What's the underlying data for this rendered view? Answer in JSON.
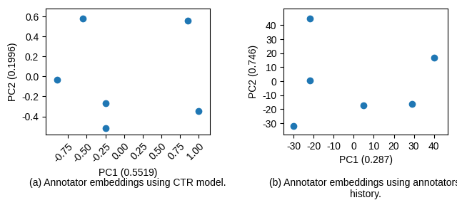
{
  "chart_data": [
    {
      "type": "scatter",
      "x": [
        -0.9,
        -0.55,
        -0.25,
        -0.25,
        0.85,
        1.0
      ],
      "values": [
        -0.03,
        0.58,
        -0.27,
        -0.52,
        0.56,
        -0.35
      ],
      "x_label": "PC1 (0.5519)",
      "y_label": "PC2 (0.1996)",
      "caption": "(a) Annotator embeddings using CTR model.",
      "color": "#1f77b4",
      "xlim": [
        -1.05,
        1.15
      ],
      "ylim": [
        -0.58,
        0.68
      ],
      "xticks": [
        -0.75,
        {
          "value": -0.5,
          "label": "-0.50"
        },
        -0.25,
        {
          "value": 0.0,
          "label": "0.00"
        },
        0.25,
        {
          "value": 0.5,
          "label": "0.50"
        },
        0.75,
        {
          "value": 1.0,
          "label": "1.00"
        }
      ],
      "yticks": [
        -0.4,
        -0.2,
        0.0,
        0.2,
        0.4,
        0.6
      ],
      "grid": false
    },
    {
      "type": "scatter",
      "x": [
        -30,
        -22,
        -22,
        5,
        29,
        40
      ],
      "values": [
        -32,
        45,
        0.5,
        -17,
        -16,
        17
      ],
      "x_label": "PC1 (0.287)",
      "y_label": "PC2 (0.746)",
      "caption": "(b) Annotator embeddings using annotators'\nhistory.",
      "color": "#1f77b4",
      "xlim": [
        -35,
        47
      ],
      "ylim": [
        -38,
        52
      ],
      "xticks": [
        -30,
        -20,
        -10,
        0,
        10,
        20,
        30,
        40
      ],
      "yticks": [
        -30,
        -20,
        -10,
        0,
        10,
        20,
        30,
        40
      ],
      "grid": false
    }
  ]
}
